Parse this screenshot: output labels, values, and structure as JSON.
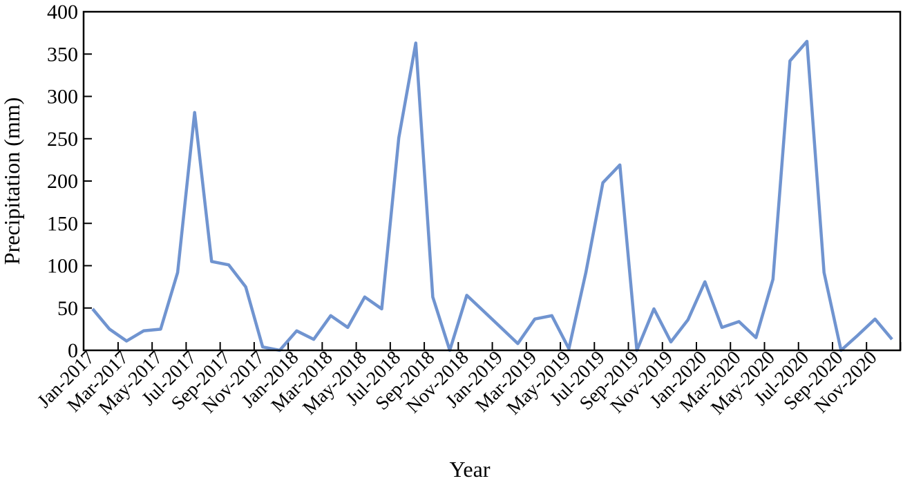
{
  "chart_data": {
    "type": "line",
    "title": "",
    "xlabel": "Year",
    "ylabel": "Precipitation (mm)",
    "ylim": [
      0,
      400
    ],
    "y_ticks": [
      "0",
      "50",
      "100",
      "150",
      "200",
      "250",
      "300",
      "350",
      "400"
    ],
    "x_tick_labels": [
      "Jan-2017",
      "Mar-2017",
      "May-2017",
      "Jul-2017",
      "Sep-2017",
      "Nov-2017",
      "Jan-2018",
      "Mar-2018",
      "May-2018",
      "Jul-2018",
      "Sep-2018",
      "Nov-2018",
      "Jan-2019",
      "Mar-2019",
      "May-2019",
      "Jul-2019",
      "Sep-2019",
      "Nov-2019",
      "Jan-2020",
      "Mar-2020",
      "May-2020",
      "Jul-2020",
      "Sep-2020",
      "Nov-2020"
    ],
    "grid": false,
    "legend": "none",
    "series": [
      {
        "color": "#7094d0",
        "x": [
          "Jan-2017",
          "Feb-2017",
          "Mar-2017",
          "Apr-2017",
          "May-2017",
          "Jun-2017",
          "Jul-2017",
          "Aug-2017",
          "Sep-2017",
          "Oct-2017",
          "Nov-2017",
          "Dec-2017",
          "Jan-2018",
          "Feb-2018",
          "Mar-2018",
          "Apr-2018",
          "May-2018",
          "Jun-2018",
          "Jul-2018",
          "Aug-2018",
          "Sep-2018",
          "Oct-2018",
          "Nov-2018",
          "Dec-2018",
          "Jan-2019",
          "Feb-2019",
          "Mar-2019",
          "Apr-2019",
          "May-2019",
          "Jun-2019",
          "Jul-2019",
          "Aug-2019",
          "Sep-2019",
          "Oct-2019",
          "Nov-2019",
          "Dec-2019",
          "Jan-2020",
          "Feb-2020",
          "Mar-2020",
          "Apr-2020",
          "May-2020",
          "Jun-2020",
          "Jul-2020",
          "Aug-2020",
          "Sep-2020",
          "Oct-2020",
          "Nov-2020",
          "Dec-2020"
        ],
        "values": [
          49,
          25,
          11,
          23,
          25,
          92,
          281,
          105,
          101,
          75,
          4,
          0,
          23,
          13,
          41,
          27,
          63,
          49,
          251,
          363,
          63,
          0,
          65,
          46,
          27,
          8,
          37,
          41,
          2,
          92,
          198,
          219,
          0,
          49,
          10,
          36,
          81,
          27,
          34,
          15,
          84,
          342,
          365,
          92,
          0,
          18,
          37,
          13
        ]
      }
    ]
  }
}
